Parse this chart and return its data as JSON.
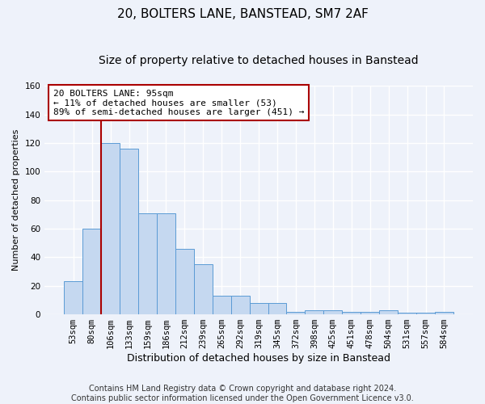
{
  "title1": "20, BOLTERS LANE, BANSTEAD, SM7 2AF",
  "title2": "Size of property relative to detached houses in Banstead",
  "xlabel": "Distribution of detached houses by size in Banstead",
  "ylabel": "Number of detached properties",
  "categories": [
    "53sqm",
    "80sqm",
    "106sqm",
    "133sqm",
    "159sqm",
    "186sqm",
    "212sqm",
    "239sqm",
    "265sqm",
    "292sqm",
    "319sqm",
    "345sqm",
    "372sqm",
    "398sqm",
    "425sqm",
    "451sqm",
    "478sqm",
    "504sqm",
    "531sqm",
    "557sqm",
    "584sqm"
  ],
  "values": [
    23,
    60,
    120,
    116,
    71,
    71,
    46,
    35,
    13,
    13,
    8,
    8,
    2,
    3,
    3,
    2,
    2,
    3,
    1,
    1,
    2
  ],
  "bar_color": "#c5d8f0",
  "bar_edge_color": "#5b9bd5",
  "bar_width": 1.0,
  "ylim": [
    0,
    160
  ],
  "yticks": [
    0,
    20,
    40,
    60,
    80,
    100,
    120,
    140,
    160
  ],
  "vline_x": 1.5,
  "vline_color": "#aa0000",
  "annotation_text": "20 BOLTERS LANE: 95sqm\n← 11% of detached houses are smaller (53)\n89% of semi-detached houses are larger (451) →",
  "annotation_box_color": "#ffffff",
  "annotation_box_edge": "#aa0000",
  "footer": "Contains HM Land Registry data © Crown copyright and database right 2024.\nContains public sector information licensed under the Open Government Licence v3.0.",
  "background_color": "#eef2fa",
  "grid_color": "#ffffff",
  "title1_fontsize": 11,
  "title2_fontsize": 10,
  "xlabel_fontsize": 9,
  "ylabel_fontsize": 8,
  "tick_fontsize": 7.5,
  "footer_fontsize": 7
}
